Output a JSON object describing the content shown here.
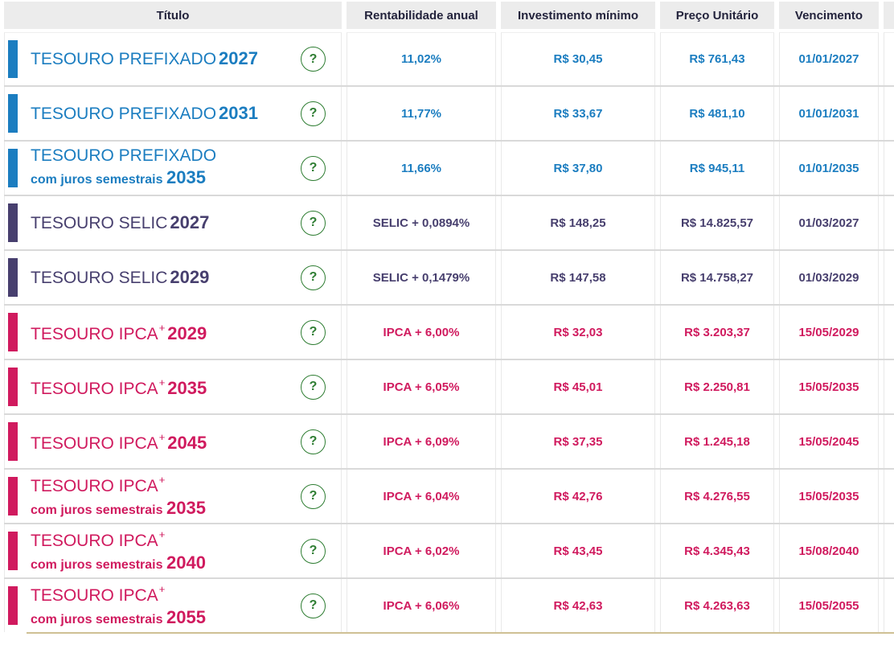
{
  "table": {
    "columns": [
      "Título",
      "Rentabilidade anual",
      "Investimento mínimo",
      "Preço Unitário",
      "Vencimento"
    ],
    "help_label": "?",
    "rows": [
      {
        "type": "prefixado",
        "title": "TESOURO PREFIXADO",
        "sup": "",
        "subtitle": "",
        "year": "2027",
        "rentabilidade": "11,02%",
        "investimento_minimo": "R$ 30,45",
        "preco_unitario": "R$ 761,43",
        "vencimento": "01/01/2027"
      },
      {
        "type": "prefixado",
        "title": "TESOURO PREFIXADO",
        "sup": "",
        "subtitle": "",
        "year": "2031",
        "rentabilidade": "11,77%",
        "investimento_minimo": "R$ 33,67",
        "preco_unitario": "R$ 481,10",
        "vencimento": "01/01/2031"
      },
      {
        "type": "prefixado",
        "title": "TESOURO PREFIXADO",
        "sup": "",
        "subtitle": "com juros semestrais",
        "year": "2035",
        "rentabilidade": "11,66%",
        "investimento_minimo": "R$ 37,80",
        "preco_unitario": "R$ 945,11",
        "vencimento": "01/01/2035"
      },
      {
        "type": "selic",
        "title": "TESOURO SELIC",
        "sup": "",
        "subtitle": "",
        "year": "2027",
        "rentabilidade": "SELIC + 0,0894%",
        "investimento_minimo": "R$ 148,25",
        "preco_unitario": "R$ 14.825,57",
        "vencimento": "01/03/2027"
      },
      {
        "type": "selic",
        "title": "TESOURO SELIC",
        "sup": "",
        "subtitle": "",
        "year": "2029",
        "rentabilidade": "SELIC + 0,1479%",
        "investimento_minimo": "R$ 147,58",
        "preco_unitario": "R$ 14.758,27",
        "vencimento": "01/03/2029"
      },
      {
        "type": "ipca",
        "title": "TESOURO IPCA",
        "sup": "+",
        "subtitle": "",
        "year": "2029",
        "rentabilidade": "IPCA + 6,00%",
        "investimento_minimo": "R$ 32,03",
        "preco_unitario": "R$ 3.203,37",
        "vencimento": "15/05/2029"
      },
      {
        "type": "ipca",
        "title": "TESOURO IPCA",
        "sup": "+",
        "subtitle": "",
        "year": "2035",
        "rentabilidade": "IPCA + 6,05%",
        "investimento_minimo": "R$ 45,01",
        "preco_unitario": "R$ 2.250,81",
        "vencimento": "15/05/2035"
      },
      {
        "type": "ipca",
        "title": "TESOURO IPCA",
        "sup": "+",
        "subtitle": "",
        "year": "2045",
        "rentabilidade": "IPCA + 6,09%",
        "investimento_minimo": "R$ 37,35",
        "preco_unitario": "R$ 1.245,18",
        "vencimento": "15/05/2045"
      },
      {
        "type": "ipca",
        "title": "TESOURO IPCA",
        "sup": "+",
        "subtitle": "com juros semestrais",
        "year": "2035",
        "rentabilidade": "IPCA + 6,04%",
        "investimento_minimo": "R$ 42,76",
        "preco_unitario": "R$ 4.276,55",
        "vencimento": "15/05/2035"
      },
      {
        "type": "ipca",
        "title": "TESOURO IPCA",
        "sup": "+",
        "subtitle": "com juros semestrais",
        "year": "2040",
        "rentabilidade": "IPCA + 6,02%",
        "investimento_minimo": "R$ 43,45",
        "preco_unitario": "R$ 4.345,43",
        "vencimento": "15/08/2040"
      },
      {
        "type": "ipca",
        "title": "TESOURO IPCA",
        "sup": "+",
        "subtitle": "com juros semestrais",
        "year": "2055",
        "rentabilidade": "IPCA + 6,06%",
        "investimento_minimo": "R$ 42,63",
        "preco_unitario": "R$ 4.263,63",
        "vencimento": "15/05/2055"
      }
    ]
  },
  "colors": {
    "prefixado": "#1b7dc0",
    "selic": "#473f6e",
    "ipca": "#d01a5e",
    "help_green": "#2e7d32",
    "header_bg": "#ececec",
    "header_text": "#23233c",
    "row_separator": "#d9d9d9",
    "bottom_rule": "#cfc094"
  }
}
